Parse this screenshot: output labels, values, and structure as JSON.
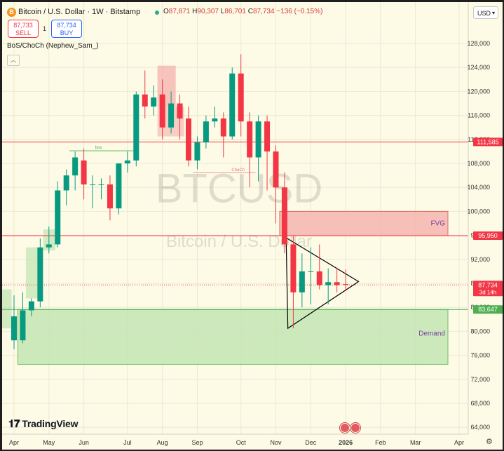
{
  "header": {
    "logo_letter": "B",
    "title": "Bitcoin / U.S. Dollar · 1W · Bitstamp",
    "o_label": "O",
    "o_value": "87,871",
    "h_label": "H",
    "h_value": "90,307",
    "l_label": "L",
    "l_value": "86,701",
    "c_label": "C",
    "c_value": "87,734",
    "change": "−136 (−0.15%)"
  },
  "trade": {
    "sell_price": "87,733",
    "sell_label": "SELL",
    "buy_price": "87,734",
    "buy_label": "BUY",
    "spread": "1"
  },
  "indicator_label": "BoS/ChoCh (Nephew_Sam_)",
  "currency_selector": "USD",
  "watermark": {
    "symbol": "BTCUSD",
    "name": "Bitcoin / U.S. Dollar"
  },
  "brand": "TradingView",
  "colors": {
    "up": "#089981",
    "down": "#f23645",
    "fvg": "#f4b1ac",
    "demand": "#c3e5b4"
  },
  "chart_data": {
    "type": "candlestick",
    "timeframe": "1W",
    "ylim": [
      63000,
      132000
    ],
    "y_ticks": [
      64000,
      68000,
      72000,
      76000,
      80000,
      84000,
      88000,
      92000,
      96000,
      100000,
      104000,
      108000,
      112000,
      116000,
      120000,
      124000,
      128000
    ],
    "y_tick_labels": [
      "64,000",
      "68,000",
      "72,000",
      "76,000",
      "80,000",
      "84,000",
      "88,000",
      "92,000",
      "96,000",
      "100,000",
      "104,000",
      "108,000",
      "112,000",
      "116,000",
      "120,000",
      "124,000",
      "128,000"
    ],
    "x_labels": [
      "Apr",
      "May",
      "Jun",
      "Jul",
      "Aug",
      "Sep",
      "Oct",
      "Nov",
      "Dec",
      "2026",
      "Feb",
      "Mar",
      "Apr"
    ],
    "x_label_index": [
      0,
      4,
      8,
      13,
      17,
      21,
      26,
      30,
      34,
      38,
      42,
      46,
      51
    ],
    "candles": [
      {
        "o": 78500,
        "h": 86000,
        "l": 77000,
        "c": 82500
      },
      {
        "o": 78500,
        "h": 86500,
        "l": 78000,
        "c": 83500
      },
      {
        "o": 83500,
        "h": 85500,
        "l": 82500,
        "c": 85000
      },
      {
        "o": 85000,
        "h": 95500,
        "l": 84000,
        "c": 94000
      },
      {
        "o": 94000,
        "h": 97500,
        "l": 93000,
        "c": 94500
      },
      {
        "o": 94500,
        "h": 105000,
        "l": 94000,
        "c": 103500
      },
      {
        "o": 103500,
        "h": 107000,
        "l": 101000,
        "c": 106000
      },
      {
        "o": 106000,
        "h": 110000,
        "l": 103500,
        "c": 109000
      },
      {
        "o": 108500,
        "h": 110500,
        "l": 102000,
        "c": 104500
      },
      {
        "o": 104500,
        "h": 106000,
        "l": 100500,
        "c": 104500
      },
      {
        "o": 104500,
        "h": 105500,
        "l": 102000,
        "c": 104500
      },
      {
        "o": 104500,
        "h": 106000,
        "l": 98500,
        "c": 100500
      },
      {
        "o": 100500,
        "h": 108000,
        "l": 99500,
        "c": 108000
      },
      {
        "o": 108000,
        "h": 110000,
        "l": 106500,
        "c": 108500
      },
      {
        "o": 108500,
        "h": 120000,
        "l": 107500,
        "c": 119500
      },
      {
        "o": 119500,
        "h": 123500,
        "l": 115500,
        "c": 117500
      },
      {
        "o": 117500,
        "h": 121000,
        "l": 116000,
        "c": 119000
      },
      {
        "o": 119500,
        "h": 122000,
        "l": 112000,
        "c": 114000
      },
      {
        "o": 114000,
        "h": 120000,
        "l": 113000,
        "c": 118000
      },
      {
        "o": 118000,
        "h": 119500,
        "l": 112000,
        "c": 115500
      },
      {
        "o": 115500,
        "h": 117500,
        "l": 107500,
        "c": 108500
      },
      {
        "o": 108500,
        "h": 112500,
        "l": 107000,
        "c": 111500
      },
      {
        "o": 111500,
        "h": 116000,
        "l": 110500,
        "c": 115000
      },
      {
        "o": 115000,
        "h": 117500,
        "l": 114000,
        "c": 115500
      },
      {
        "o": 115500,
        "h": 116500,
        "l": 109000,
        "c": 112500
      },
      {
        "o": 112500,
        "h": 124000,
        "l": 112000,
        "c": 123000
      },
      {
        "o": 123000,
        "h": 126200,
        "l": 112500,
        "c": 115000
      },
      {
        "o": 115000,
        "h": 116500,
        "l": 104000,
        "c": 109000
      },
      {
        "o": 109000,
        "h": 116000,
        "l": 105000,
        "c": 115000
      },
      {
        "o": 115000,
        "h": 116000,
        "l": 103500,
        "c": 110000
      },
      {
        "o": 110000,
        "h": 111000,
        "l": 98000,
        "c": 104000
      },
      {
        "o": 104000,
        "h": 106500,
        "l": 93000,
        "c": 94500
      },
      {
        "o": 94500,
        "h": 96000,
        "l": 80500,
        "c": 86500
      },
      {
        "o": 86500,
        "h": 93000,
        "l": 84000,
        "c": 90000
      },
      {
        "o": 90000,
        "h": 94000,
        "l": 84500,
        "c": 90000
      },
      {
        "o": 90000,
        "h": 94500,
        "l": 87000,
        "c": 87700
      },
      {
        "o": 87700,
        "h": 90500,
        "l": 84500,
        "c": 88200
      },
      {
        "o": 88200,
        "h": 90500,
        "l": 86500,
        "c": 87700
      },
      {
        "o": 87871,
        "h": 90307,
        "l": 86701,
        "c": 87734
      }
    ],
    "annotations": {
      "bos_label": "bos",
      "choch_label": "ChoCh",
      "fvg_label": "FVG",
      "demand_label": "Demand",
      "fvg_zone": [
        95950,
        100000
      ],
      "demand_zone": [
        74500,
        83647
      ],
      "triangle": {
        "apex": 88300,
        "upper": 95600,
        "lower": 80500
      }
    },
    "price_lines": [
      {
        "price": 111585,
        "label": "111,585"
      },
      {
        "price": 95950,
        "label": "95,950"
      }
    ],
    "last_price": {
      "label": "87,734",
      "time_left": "3d 14h"
    },
    "demand_price_label": "83,647"
  }
}
